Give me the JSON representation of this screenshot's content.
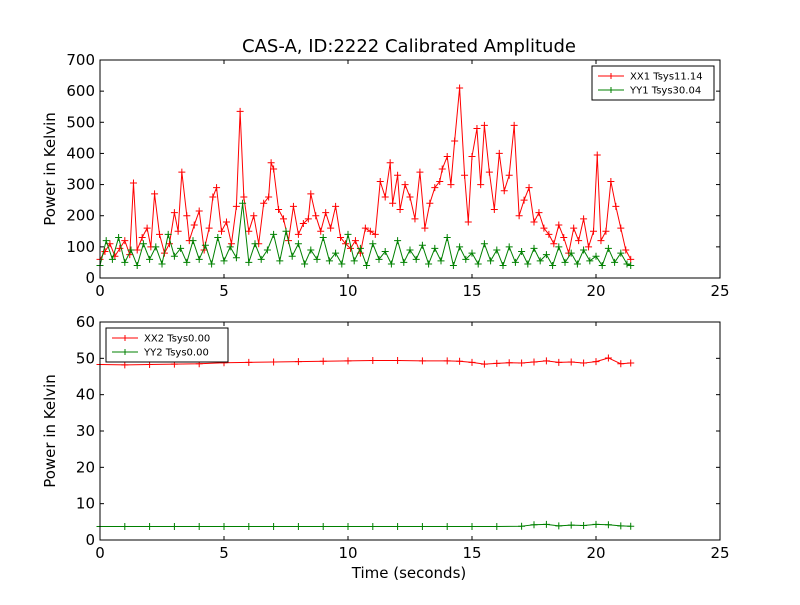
{
  "figure": {
    "title": "CAS-A, ID:2222 Calibrated Amplitude",
    "xlabel": "Time (seconds)"
  },
  "chart_data": [
    {
      "type": "line",
      "ylabel": "Power in Kelvin",
      "xlim": [
        0,
        25
      ],
      "ylim": [
        0,
        700
      ],
      "xticks": [
        "0",
        "5",
        "10",
        "15",
        "20",
        "25"
      ],
      "yticks": [
        "0",
        "100",
        "200",
        "300",
        "400",
        "500",
        "600",
        "700"
      ],
      "grid": false,
      "legend_position": "top-right",
      "markers": "+",
      "series": [
        {
          "name": "XX1 Tsys11.14",
          "color": "#ff0000",
          "x": [
            0.0,
            0.2,
            0.4,
            0.6,
            0.8,
            1.0,
            1.2,
            1.35,
            1.5,
            1.7,
            1.9,
            2.05,
            2.2,
            2.4,
            2.6,
            2.8,
            3.0,
            3.15,
            3.3,
            3.5,
            3.6,
            3.8,
            4.0,
            4.2,
            4.4,
            4.55,
            4.7,
            4.9,
            5.1,
            5.3,
            5.5,
            5.65,
            5.8,
            6.0,
            6.2,
            6.4,
            6.6,
            6.8,
            6.9,
            7.0,
            7.2,
            7.4,
            7.6,
            7.8,
            8.0,
            8.2,
            8.4,
            8.5,
            8.7,
            8.9,
            9.1,
            9.3,
            9.5,
            9.7,
            9.9,
            10.1,
            10.3,
            10.5,
            10.7,
            10.9,
            11.1,
            11.3,
            11.5,
            11.7,
            11.8,
            12.0,
            12.1,
            12.3,
            12.5,
            12.7,
            12.9,
            13.1,
            13.3,
            13.5,
            13.7,
            13.8,
            14.0,
            14.15,
            14.3,
            14.5,
            14.7,
            14.85,
            15.0,
            15.2,
            15.35,
            15.5,
            15.7,
            15.9,
            16.1,
            16.3,
            16.5,
            16.7,
            16.9,
            17.1,
            17.3,
            17.5,
            17.7,
            17.9,
            18.1,
            18.3,
            18.5,
            18.7,
            18.9,
            19.1,
            19.3,
            19.5,
            19.7,
            19.9,
            20.05,
            20.2,
            20.4,
            20.6,
            20.8,
            21.0,
            21.2,
            21.4
          ],
          "y": [
            60,
            85,
            110,
            70,
            95,
            120,
            75,
            305,
            90,
            130,
            160,
            100,
            270,
            140,
            80,
            110,
            210,
            150,
            340,
            200,
            120,
            170,
            215,
            90,
            160,
            260,
            290,
            150,
            180,
            110,
            230,
            535,
            260,
            150,
            200,
            110,
            240,
            260,
            370,
            350,
            220,
            190,
            120,
            230,
            140,
            175,
            190,
            270,
            200,
            150,
            210,
            160,
            230,
            130,
            110,
            95,
            120,
            80,
            160,
            150,
            140,
            310,
            260,
            370,
            240,
            330,
            220,
            300,
            260,
            190,
            340,
            160,
            240,
            290,
            310,
            350,
            390,
            300,
            440,
            610,
            330,
            180,
            390,
            480,
            300,
            490,
            340,
            220,
            400,
            280,
            330,
            490,
            200,
            250,
            290,
            180,
            210,
            160,
            140,
            110,
            170,
            130,
            80,
            160,
            120,
            190,
            100,
            150,
            395,
            120,
            150,
            310,
            230,
            160,
            90,
            60
          ]
        },
        {
          "name": "YY1 Tsys30.04",
          "color": "#008000",
          "x": [
            0.0,
            0.25,
            0.5,
            0.75,
            1.0,
            1.25,
            1.5,
            1.75,
            2.0,
            2.25,
            2.5,
            2.75,
            3.0,
            3.25,
            3.5,
            3.75,
            4.0,
            4.25,
            4.5,
            4.75,
            5.0,
            5.25,
            5.5,
            5.75,
            6.0,
            6.25,
            6.5,
            6.75,
            7.0,
            7.25,
            7.5,
            7.75,
            8.0,
            8.25,
            8.5,
            8.75,
            9.0,
            9.25,
            9.5,
            9.75,
            10.0,
            10.25,
            10.5,
            10.75,
            11.0,
            11.25,
            11.5,
            11.75,
            12.0,
            12.25,
            12.5,
            12.75,
            13.0,
            13.25,
            13.5,
            13.75,
            14.0,
            14.25,
            14.5,
            14.75,
            15.0,
            15.25,
            15.5,
            15.75,
            16.0,
            16.25,
            16.5,
            16.75,
            17.0,
            17.25,
            17.5,
            17.75,
            18.0,
            18.25,
            18.5,
            18.75,
            19.0,
            19.25,
            19.5,
            19.75,
            20.0,
            20.25,
            20.5,
            20.75,
            21.0,
            21.25,
            21.4
          ],
          "y": [
            40,
            120,
            60,
            130,
            50,
            90,
            40,
            110,
            60,
            100,
            45,
            140,
            70,
            95,
            50,
            120,
            60,
            105,
            45,
            130,
            55,
            100,
            65,
            240,
            50,
            110,
            60,
            90,
            140,
            55,
            150,
            70,
            110,
            45,
            90,
            60,
            130,
            55,
            80,
            45,
            140,
            55,
            95,
            40,
            110,
            60,
            85,
            45,
            120,
            50,
            90,
            60,
            105,
            45,
            95,
            55,
            130,
            40,
            100,
            60,
            80,
            45,
            110,
            55,
            90,
            40,
            100,
            50,
            85,
            45,
            95,
            55,
            75,
            40,
            100,
            50,
            80,
            45,
            90,
            55,
            70,
            40,
            95,
            50,
            80,
            45,
            40
          ]
        }
      ]
    },
    {
      "type": "line",
      "ylabel": "Power in Kelvin",
      "xlabel": "Time (seconds)",
      "xlim": [
        0,
        25
      ],
      "ylim": [
        0,
        60
      ],
      "xticks": [
        "0",
        "5",
        "10",
        "15",
        "20",
        "25"
      ],
      "yticks": [
        "0",
        "10",
        "20",
        "30",
        "40",
        "50",
        "60"
      ],
      "grid": false,
      "legend_position": "top-left",
      "markers": "+",
      "series": [
        {
          "name": "XX2 Tsys0.00",
          "color": "#ff0000",
          "x": [
            0,
            1,
            2,
            3,
            4,
            5,
            6,
            7,
            8,
            9,
            10,
            11,
            12,
            13,
            14,
            14.5,
            15,
            15.5,
            16,
            16.5,
            17,
            17.5,
            18,
            18.5,
            19,
            19.5,
            20,
            20.5,
            21,
            21.4
          ],
          "y": [
            48.3,
            48.2,
            48.3,
            48.4,
            48.5,
            48.8,
            48.9,
            49.0,
            49.1,
            49.2,
            49.3,
            49.4,
            49.4,
            49.3,
            49.3,
            49.2,
            48.9,
            48.4,
            48.6,
            48.8,
            48.7,
            49.0,
            49.3,
            48.9,
            49.0,
            48.7,
            49.1,
            50.1,
            48.5,
            48.7
          ]
        },
        {
          "name": "YY2 Tsys0.00",
          "color": "#008000",
          "x": [
            0,
            1,
            2,
            3,
            4,
            5,
            6,
            7,
            8,
            9,
            10,
            11,
            12,
            13,
            14,
            15,
            16,
            17,
            17.5,
            18,
            18.5,
            19,
            19.5,
            20,
            20.5,
            21,
            21.4
          ],
          "y": [
            3.7,
            3.7,
            3.7,
            3.7,
            3.7,
            3.7,
            3.7,
            3.7,
            3.7,
            3.7,
            3.7,
            3.7,
            3.7,
            3.7,
            3.7,
            3.7,
            3.7,
            3.8,
            4.2,
            4.3,
            3.9,
            4.1,
            4.0,
            4.3,
            4.2,
            3.9,
            3.8
          ]
        }
      ]
    }
  ]
}
